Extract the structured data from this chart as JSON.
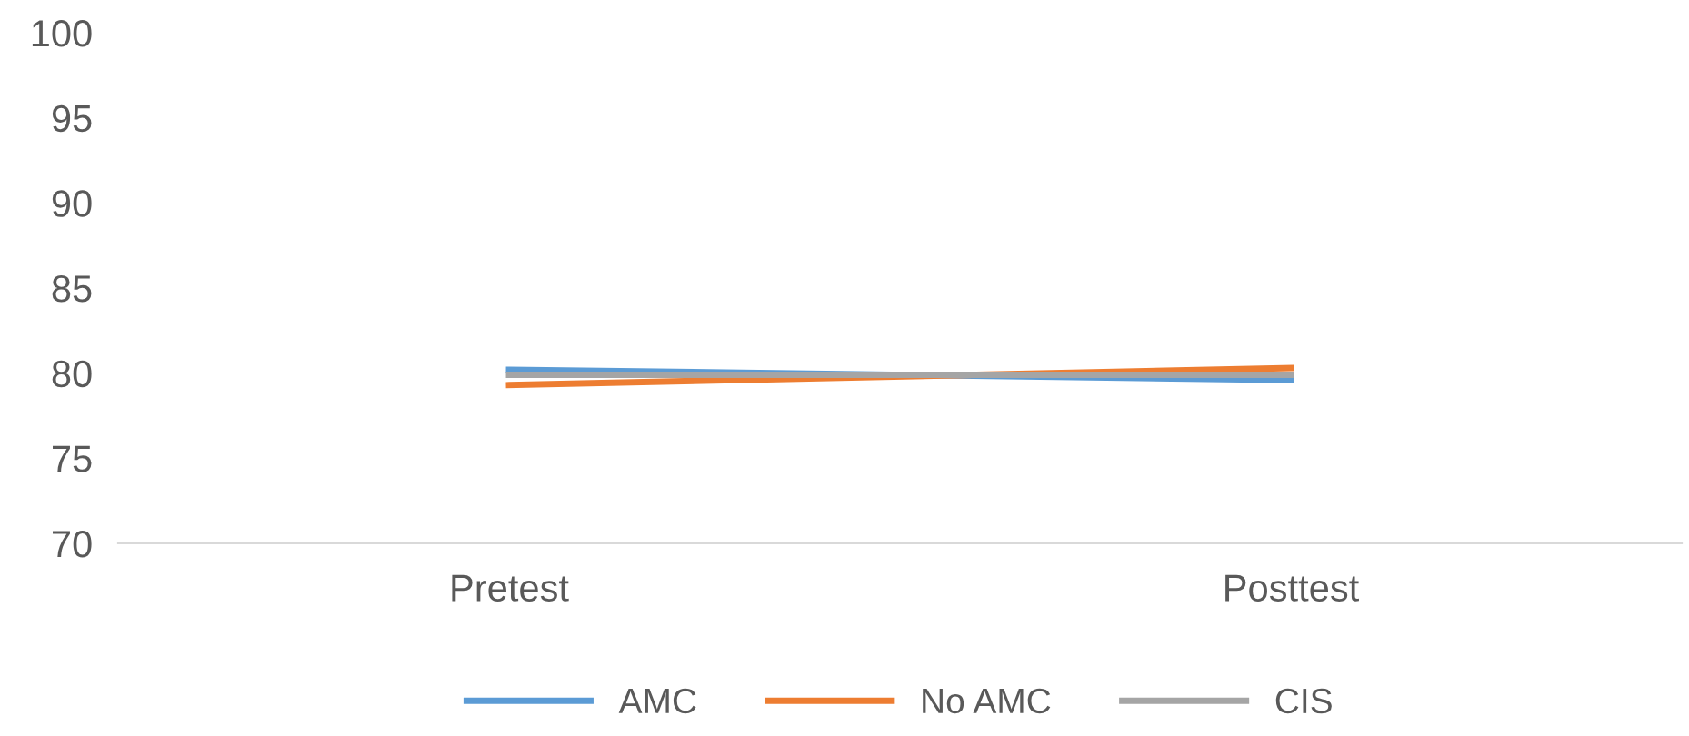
{
  "chart_data": {
    "type": "line",
    "categories": [
      "Pretest",
      "Posttest"
    ],
    "series": [
      {
        "name": "AMC",
        "color": "#5b9bd5",
        "values": [
          80.2,
          79.6
        ]
      },
      {
        "name": "No AMC",
        "color": "#ed7d31",
        "values": [
          79.3,
          80.3
        ]
      },
      {
        "name": "CIS",
        "color": "#a5a5a5",
        "values": [
          79.9,
          79.9
        ]
      }
    ],
    "ylim": [
      70,
      100
    ],
    "yticks": [
      70,
      75,
      80,
      85,
      90,
      95,
      100
    ],
    "grid": false,
    "legend": "bottom",
    "marker": "none",
    "line_style": "solid"
  }
}
